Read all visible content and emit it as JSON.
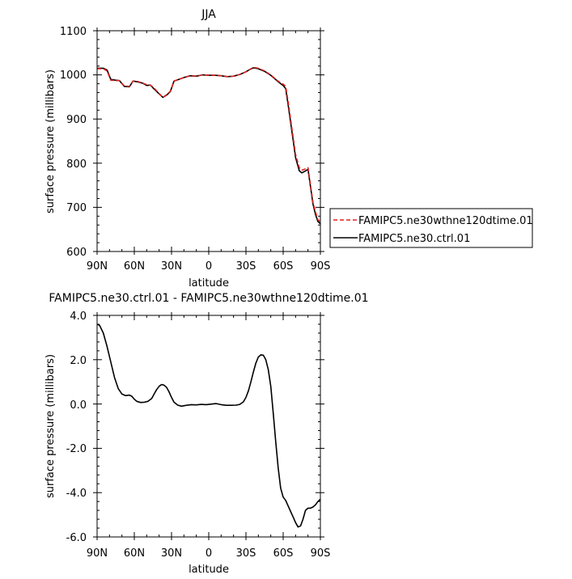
{
  "chart_data": [
    {
      "type": "line",
      "title": "JJA",
      "xlabel": "latitude",
      "ylabel": "surface pressure (millibars)",
      "xlim": [
        90,
        -90
      ],
      "ylim": [
        600,
        1100
      ],
      "x_ticks": [
        90,
        60,
        30,
        0,
        -30,
        -60,
        -90
      ],
      "x_tick_labels": [
        "90N",
        "60N",
        "30N",
        "0",
        "30S",
        "60S",
        "90S"
      ],
      "y_ticks": [
        600,
        700,
        800,
        900,
        1000,
        1100
      ],
      "y_tick_labels": [
        "600",
        "700",
        "800",
        "900",
        "1000",
        "1100"
      ],
      "legend_position": "right",
      "x": [
        90,
        85,
        82,
        79,
        75,
        72,
        68,
        64,
        61,
        57,
        53,
        50,
        47,
        44,
        40,
        37,
        34,
        31,
        28,
        24,
        20,
        15,
        10,
        5,
        0,
        -5,
        -10,
        -15,
        -20,
        -25,
        -30,
        -33,
        -36,
        -40,
        -45,
        -50,
        -55,
        -58,
        -60,
        -62,
        -64,
        -67,
        -70,
        -73,
        -75,
        -77,
        -80,
        -82,
        -84,
        -86,
        -88,
        -90
      ],
      "series": [
        {
          "name": "FAMIPC5.ne30wthne120dtime.01",
          "color": "#e0201c",
          "dash": "dashed",
          "values": [
            1014,
            1014,
            1009,
            988,
            987,
            987,
            975,
            974,
            986,
            985,
            981,
            978,
            977,
            970,
            958,
            949,
            955,
            963,
            986,
            990,
            994,
            998,
            997,
            1000,
            999,
            999,
            998,
            996,
            997,
            1001,
            1007,
            1012,
            1017,
            1015,
            1009,
            1000,
            988,
            982,
            979,
            974,
            940,
            880,
            820,
            790,
            784,
            786,
            790,
            752,
            712,
            690,
            672,
            667
          ]
        },
        {
          "name": "FAMIPC5.ne30.ctrl.01",
          "color": "#000000",
          "dash": "solid",
          "values": [
            1015,
            1015,
            1011,
            990,
            988,
            987,
            974,
            973,
            986,
            984,
            981,
            976,
            977,
            968,
            957,
            949,
            954,
            962,
            986,
            990,
            994,
            998,
            997,
            1000,
            999,
            999,
            998,
            996,
            997,
            1001,
            1007,
            1012,
            1016,
            1014,
            1008,
            999,
            987,
            980,
            976,
            969,
            933,
            873,
            813,
            783,
            778,
            781,
            786,
            748,
            708,
            684,
            668,
            663
          ]
        }
      ]
    },
    {
      "type": "line",
      "title": "FAMIPC5.ne30.ctrl.01 - FAMIPC5.ne30wthne120dtime.01",
      "xlabel": "latitude",
      "ylabel": "surface pressure (millibars)",
      "xlim": [
        90,
        -90
      ],
      "ylim": [
        -6.0,
        4.0
      ],
      "x_ticks": [
        90,
        60,
        30,
        0,
        -30,
        -60,
        -90
      ],
      "x_tick_labels": [
        "90N",
        "60N",
        "30N",
        "0",
        "30S",
        "60S",
        "90S"
      ],
      "y_ticks": [
        -6,
        -4,
        -2,
        0,
        2,
        4
      ],
      "y_tick_labels": [
        "-6.0",
        "-4.0",
        "-2.0",
        "0.0",
        "2.0",
        "4.0"
      ],
      "x": [
        90,
        88,
        85,
        82,
        79,
        76,
        73,
        70,
        67,
        64,
        62,
        60,
        58,
        55,
        52,
        49,
        46,
        44,
        42,
        40,
        38,
        36,
        34,
        32,
        30,
        28,
        25,
        22,
        18,
        14,
        10,
        6,
        2,
        0,
        -3,
        -6,
        -10,
        -14,
        -18,
        -22,
        -25,
        -28,
        -30,
        -32,
        -34,
        -36,
        -38,
        -40,
        -42,
        -44,
        -46,
        -48,
        -50,
        -52,
        -54,
        -56,
        -58,
        -60,
        -62,
        -64,
        -66,
        -68,
        -70,
        -72,
        -74,
        -76,
        -78,
        -80,
        -82,
        -84,
        -86,
        -88,
        -90
      ],
      "values": [
        3.6,
        3.55,
        3.2,
        2.6,
        1.9,
        1.2,
        0.7,
        0.45,
        0.38,
        0.4,
        0.35,
        0.22,
        0.12,
        0.07,
        0.08,
        0.12,
        0.25,
        0.45,
        0.65,
        0.8,
        0.88,
        0.85,
        0.75,
        0.55,
        0.3,
        0.08,
        -0.05,
        -0.1,
        -0.06,
        -0.03,
        -0.04,
        -0.02,
        -0.03,
        -0.02,
        0.0,
        0.02,
        -0.03,
        -0.06,
        -0.06,
        -0.05,
        -0.02,
        0.1,
        0.3,
        0.6,
        1.0,
        1.45,
        1.85,
        2.12,
        2.22,
        2.2,
        2.0,
        1.55,
        0.8,
        -0.4,
        -1.7,
        -2.9,
        -3.8,
        -4.2,
        -4.35,
        -4.6,
        -4.85,
        -5.1,
        -5.35,
        -5.55,
        -5.5,
        -5.2,
        -4.8,
        -4.7,
        -4.7,
        -4.65,
        -4.55,
        -4.4,
        -4.3
      ]
    }
  ]
}
